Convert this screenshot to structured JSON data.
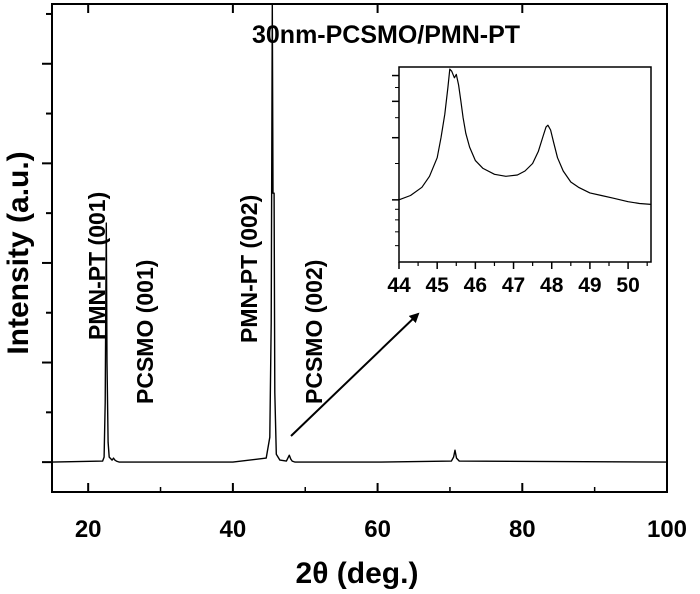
{
  "chart_data": [
    {
      "type": "line",
      "title": "30nm-PCSMO/PMN-PT",
      "xlabel": "2θ (deg.)",
      "ylabel": "Intensity (a.u.)",
      "xlim": [
        15,
        100
      ],
      "ylim": [
        -0.3,
        4.6
      ],
      "x_ticks": [
        "20",
        "40",
        "60",
        "80",
        "100"
      ],
      "y_tick_labels_shown": false,
      "y_scale": "linear",
      "series": [
        {
          "x": [
            15,
            22.0,
            22.2,
            22.35,
            22.5,
            22.6,
            22.75,
            22.9,
            23.3,
            23.5,
            23.7,
            23.9,
            24.3,
            30,
            40,
            44.6,
            45.1,
            45.3,
            45.45,
            45.55,
            45.7,
            45.8,
            46.0,
            46.5,
            47.4,
            47.8,
            48.0,
            48.2,
            48.6,
            60,
            70.2,
            70.5,
            70.7,
            70.9,
            71.3,
            100
          ],
          "y": [
            0,
            0.01,
            0.05,
            0.6,
            2.4,
            1.0,
            0.2,
            0.05,
            0.02,
            0.04,
            0.02,
            0.01,
            0,
            0,
            0,
            0.04,
            0.25,
            1.4,
            4.6,
            2.7,
            2.7,
            0.7,
            0.08,
            0.02,
            0.01,
            0.07,
            0.03,
            0.01,
            0,
            0,
            0.01,
            0.05,
            0.12,
            0.04,
            0.01,
            0
          ]
        }
      ]
    },
    {
      "type": "line",
      "title": "",
      "xlim": [
        44,
        50.6
      ],
      "ylim": [
        0.5,
        4.4
      ],
      "x_ticks": [
        "44",
        "45",
        "46",
        "47",
        "48",
        "49",
        "50"
      ],
      "y_scale": "log",
      "y_tick_labels_shown": false,
      "series": [
        {
          "x": [
            44.0,
            44.3,
            44.6,
            44.8,
            45.0,
            45.1,
            45.2,
            45.28,
            45.33,
            45.38,
            45.45,
            45.5,
            45.56,
            45.62,
            45.68,
            45.75,
            45.85,
            46.0,
            46.2,
            46.5,
            46.8,
            47.1,
            47.3,
            47.5,
            47.65,
            47.78,
            47.85,
            47.9,
            47.97,
            48.05,
            48.15,
            48.3,
            48.5,
            48.7,
            49.0,
            49.3,
            49.6,
            50.0,
            50.3,
            50.6
          ],
          "y": [
            1.0,
            1.05,
            1.15,
            1.3,
            1.6,
            2.0,
            2.6,
            3.5,
            4.3,
            4.2,
            3.9,
            4.05,
            3.6,
            3.0,
            2.5,
            2.1,
            1.8,
            1.55,
            1.42,
            1.33,
            1.3,
            1.32,
            1.38,
            1.5,
            1.72,
            2.05,
            2.25,
            2.3,
            2.18,
            1.9,
            1.6,
            1.38,
            1.22,
            1.15,
            1.08,
            1.05,
            1.02,
            0.98,
            0.96,
            0.95
          ]
        }
      ]
    }
  ],
  "annotations": {
    "peak1": "PMN-PT (001)",
    "peak2": "PCSMO (001)",
    "peak3": "PMN-PT (002)",
    "peak4": "PCSMO (002)"
  },
  "colors": {
    "line": "#000000",
    "background": "#ffffff"
  }
}
